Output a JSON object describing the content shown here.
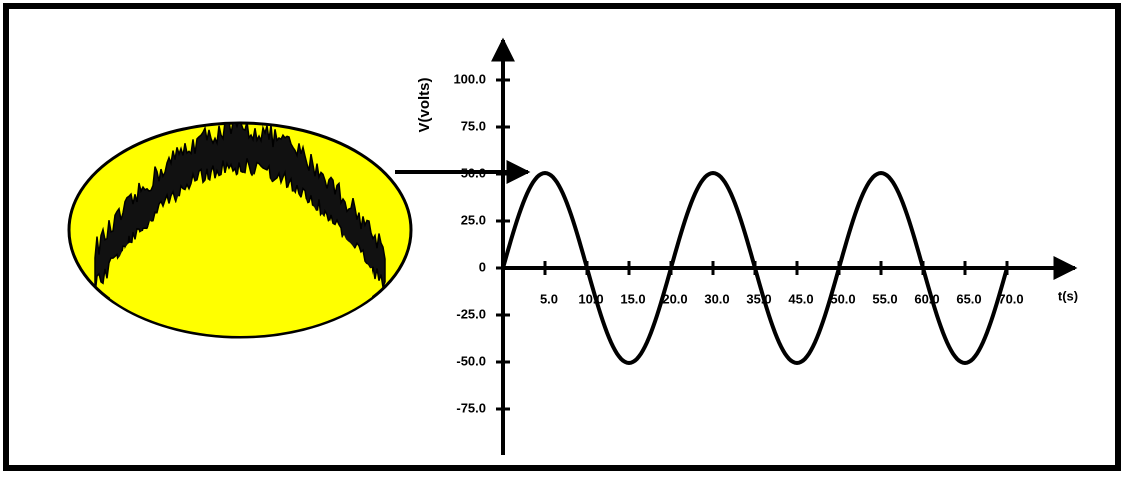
{
  "axes": {
    "y_label": "V(volts)",
    "x_label": "t(s)",
    "y_tick_labels": [
      "100.0",
      "75.0",
      "50.0",
      "25.0",
      "0",
      "-25.0",
      "-50.0",
      "-75.0"
    ],
    "x_tick_labels": [
      "5.0",
      "10.0",
      "15.0",
      "20.0",
      "30.0",
      "35.0",
      "45.0",
      "50.0",
      "55.0",
      "60.0",
      "65.0",
      "70.0"
    ]
  }
}
